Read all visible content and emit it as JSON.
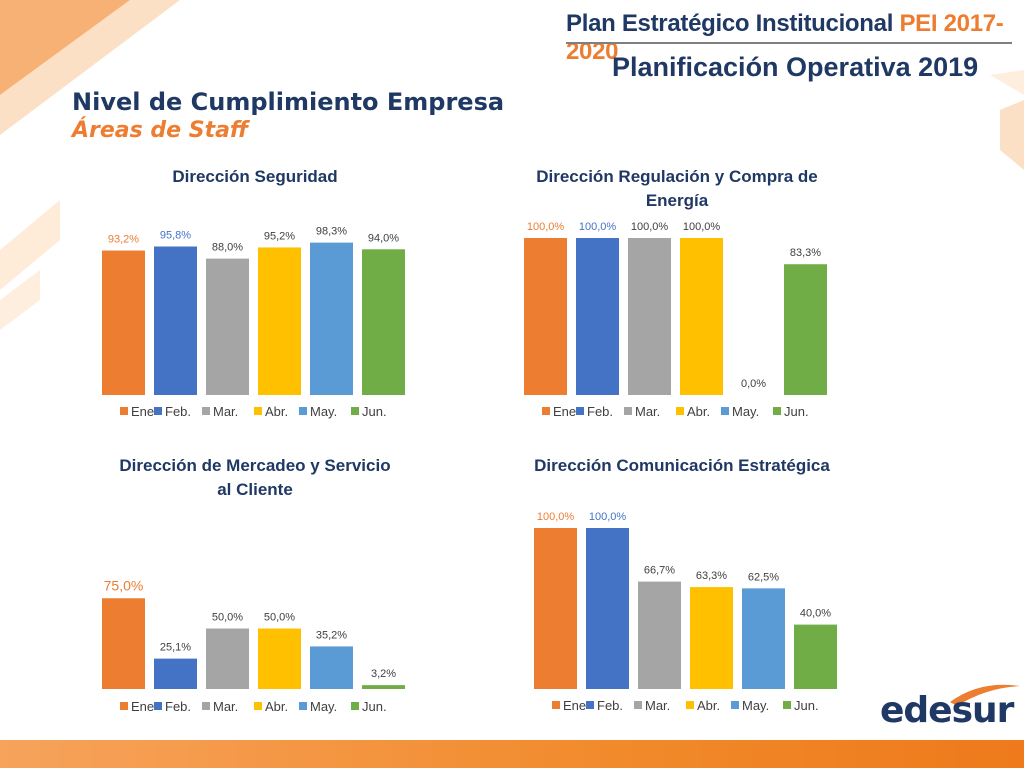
{
  "header": {
    "plan_title": "Plan Estratégico Institucional ",
    "plan_years": "PEI 2017-2020",
    "subtitle": "Planificación Operativa 2019"
  },
  "slide": {
    "title": "Nivel de Cumplimiento Empresa",
    "subtitle": "Áreas de Staff"
  },
  "logo": {
    "text": "edesur"
  },
  "colors": {
    "Ene": "#ed7d31",
    "Feb.": "#4472c4",
    "Mar.": "#a5a5a5",
    "Abr.": "#ffc000",
    "May.": "#5b9bd5",
    "Jun.": "#70ad47",
    "title_blue": "#1f3864",
    "accent_orange": "#ed7d31"
  },
  "chart_data": [
    {
      "type": "bar",
      "title": "Dirección Seguridad",
      "categories": [
        "Ene",
        "Feb.",
        "Mar.",
        "Abr.",
        "May.",
        "Jun."
      ],
      "values": [
        93.2,
        95.8,
        88.0,
        95.2,
        98.3,
        94.0
      ],
      "labels": [
        "93,2%",
        "95,8%",
        "88,0%",
        "95,2%",
        "98,3%",
        "94,0%"
      ],
      "ylim": [
        0,
        100
      ],
      "legend": "bottom",
      "grid": false
    },
    {
      "type": "bar",
      "title": "Dirección Regulación y Compra de Energía",
      "categories": [
        "Ene",
        "Feb.",
        "Mar.",
        "Abr.",
        "May.",
        "Jun."
      ],
      "values": [
        100.0,
        100.0,
        100.0,
        100.0,
        0.0,
        83.3
      ],
      "labels": [
        "100,0%",
        "100,0%",
        "100,0%",
        "100,0%",
        "0,0%",
        "83,3%"
      ],
      "ylim": [
        0,
        100
      ],
      "legend": "bottom",
      "grid": false
    },
    {
      "type": "bar",
      "title": "Dirección de Mercadeo y Servicio al Cliente",
      "categories": [
        "Ene",
        "Feb.",
        "Mar.",
        "Abr.",
        "May.",
        "Jun."
      ],
      "values": [
        75.0,
        25.1,
        50.0,
        50.0,
        35.2,
        3.2
      ],
      "labels": [
        "75,0%",
        "25,1%",
        "50,0%",
        "50,0%",
        "35,2%",
        "3,2%"
      ],
      "ylim": [
        0,
        100
      ],
      "legend": "bottom",
      "grid": false
    },
    {
      "type": "bar",
      "title": "Dirección Comunicación Estratégica",
      "categories": [
        "Ene",
        "Feb.",
        "Mar.",
        "Abr.",
        "May.",
        "Jun."
      ],
      "values": [
        100.0,
        100.0,
        66.7,
        63.3,
        62.5,
        40.0
      ],
      "labels": [
        "100,0%",
        "100,0%",
        "66,7%",
        "63,3%",
        "62,5%",
        "40,0%"
      ],
      "ylim": [
        0,
        100
      ],
      "legend": "bottom",
      "grid": false
    }
  ]
}
